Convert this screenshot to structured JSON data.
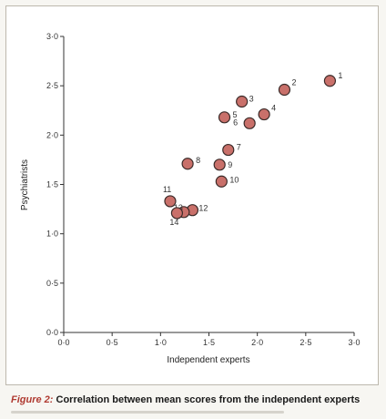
{
  "chart_data": {
    "type": "scatter",
    "xlabel": "Independent experts",
    "ylabel": "Psychiatrists",
    "xlim": [
      0.0,
      3.0
    ],
    "ylim": [
      0.0,
      3.0
    ],
    "x_ticks": [
      "0·0",
      "0·5",
      "1·0",
      "1·5",
      "2·0",
      "2·5",
      "3·0"
    ],
    "y_ticks": [
      "0·0",
      "0·5",
      "1·0",
      "1·5",
      "2·0",
      "2·5",
      "3·0"
    ],
    "grid": false,
    "points": [
      {
        "label": "1",
        "x": 2.75,
        "y": 2.55
      },
      {
        "label": "2",
        "x": 2.28,
        "y": 2.46
      },
      {
        "label": "3",
        "x": 1.84,
        "y": 2.34
      },
      {
        "label": "4",
        "x": 2.07,
        "y": 2.21
      },
      {
        "label": "5",
        "x": 1.66,
        "y": 2.18
      },
      {
        "label": "6",
        "x": 1.92,
        "y": 2.12
      },
      {
        "label": "7",
        "x": 1.7,
        "y": 1.85
      },
      {
        "label": "8",
        "x": 1.28,
        "y": 1.71
      },
      {
        "label": "9",
        "x": 1.61,
        "y": 1.7
      },
      {
        "label": "10",
        "x": 1.63,
        "y": 1.53
      },
      {
        "label": "11",
        "x": 1.1,
        "y": 1.33
      },
      {
        "label": "12",
        "x": 1.33,
        "y": 1.24
      },
      {
        "label": "13",
        "x": 1.24,
        "y": 1.22
      },
      {
        "label": "14",
        "x": 1.17,
        "y": 1.21
      }
    ]
  },
  "colors": {
    "marker_fill": "#c9706a",
    "marker_stroke": "#3a2a28",
    "caption_accent": "#b03b32"
  },
  "caption": {
    "figure": "Figure 2:",
    "text": "Correlation between mean scores from the independent experts"
  }
}
